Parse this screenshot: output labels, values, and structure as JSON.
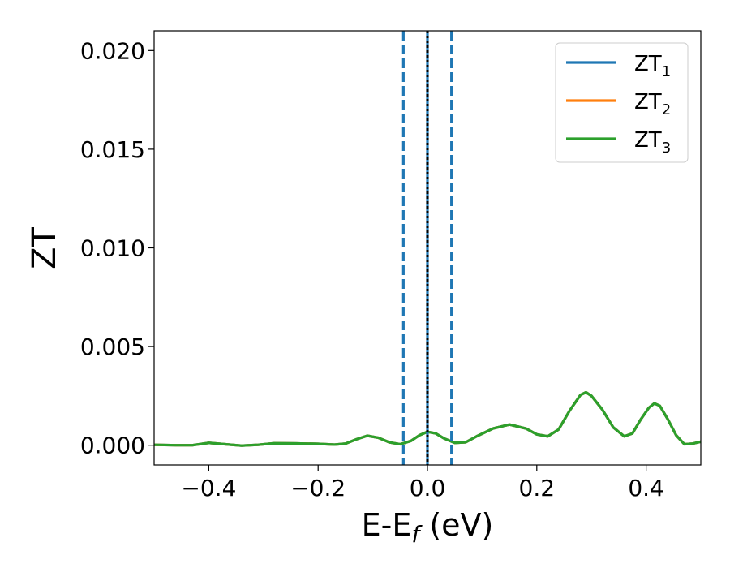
{
  "chart_data": {
    "type": "line",
    "title": "",
    "xlabel": "E-E",
    "xlabel_sub": "f",
    "xlabel_unit": " (eV)",
    "ylabel": "ZT",
    "xlim": [
      -0.5,
      0.5
    ],
    "ylim": [
      -0.001,
      0.021
    ],
    "xticks": [
      -0.4,
      -0.2,
      0.0,
      0.2,
      0.4
    ],
    "xtick_labels": [
      "−0.4",
      "−0.2",
      "0.0",
      "0.2",
      "0.4"
    ],
    "yticks": [
      0.0,
      0.005,
      0.01,
      0.015,
      0.02
    ],
    "ytick_labels": [
      "0.000",
      "0.005",
      "0.010",
      "0.015",
      "0.020"
    ],
    "grid": false,
    "legend_position": "top-right",
    "vlines": [
      {
        "x": -0.044,
        "style": "dashed",
        "color": "#1f77b4"
      },
      {
        "x": 0.0,
        "style": "solid",
        "color": "#1f77b4"
      },
      {
        "x": 0.0,
        "style": "dotted",
        "color": "#000000"
      },
      {
        "x": 0.044,
        "style": "dashed",
        "color": "#1f77b4"
      }
    ],
    "series": [
      {
        "name": "ZT",
        "sub": "1",
        "color": "#1f77b4",
        "points": [
          [
            -0.5,
            2e-05
          ],
          [
            -0.46,
            0.0
          ],
          [
            -0.43,
            0.0
          ],
          [
            -0.4,
            0.00012
          ],
          [
            -0.37,
            5e-05
          ],
          [
            -0.34,
            -2e-05
          ],
          [
            -0.31,
            2e-05
          ],
          [
            -0.28,
            0.0001
          ],
          [
            -0.24,
            9e-05
          ],
          [
            -0.2,
            7e-05
          ],
          [
            -0.17,
            3e-05
          ],
          [
            -0.15,
            8e-05
          ],
          [
            -0.13,
            0.0003
          ],
          [
            -0.11,
            0.00048
          ],
          [
            -0.09,
            0.00038
          ],
          [
            -0.07,
            0.00015
          ],
          [
            -0.05,
            5e-05
          ],
          [
            -0.03,
            0.00022
          ],
          [
            -0.015,
            0.0005
          ],
          [
            0.0,
            0.00068
          ],
          [
            0.015,
            0.0006
          ],
          [
            0.03,
            0.00035
          ],
          [
            0.05,
            0.00012
          ],
          [
            0.07,
            0.00015
          ],
          [
            0.09,
            0.00045
          ],
          [
            0.12,
            0.00085
          ],
          [
            0.15,
            0.00105
          ],
          [
            0.18,
            0.00085
          ],
          [
            0.2,
            0.00055
          ],
          [
            0.22,
            0.00045
          ],
          [
            0.24,
            0.0008
          ],
          [
            0.26,
            0.00175
          ],
          [
            0.28,
            0.00255
          ],
          [
            0.29,
            0.00268
          ],
          [
            0.3,
            0.0025
          ],
          [
            0.32,
            0.0018
          ],
          [
            0.34,
            0.0009
          ],
          [
            0.36,
            0.00045
          ],
          [
            0.375,
            0.0006
          ],
          [
            0.39,
            0.0013
          ],
          [
            0.405,
            0.0019
          ],
          [
            0.415,
            0.00212
          ],
          [
            0.425,
            0.002
          ],
          [
            0.44,
            0.0013
          ],
          [
            0.455,
            0.0005
          ],
          [
            0.47,
            5e-05
          ],
          [
            0.485,
            8e-05
          ],
          [
            0.5,
            0.00018
          ]
        ]
      },
      {
        "name": "ZT",
        "sub": "2",
        "color": "#ff7f0e",
        "points": [
          [
            -0.5,
            2e-05
          ],
          [
            -0.46,
            0.0
          ],
          [
            -0.43,
            0.0
          ],
          [
            -0.4,
            0.00012
          ],
          [
            -0.37,
            5e-05
          ],
          [
            -0.34,
            -2e-05
          ],
          [
            -0.31,
            2e-05
          ],
          [
            -0.28,
            0.0001
          ],
          [
            -0.24,
            9e-05
          ],
          [
            -0.2,
            7e-05
          ],
          [
            -0.17,
            3e-05
          ],
          [
            -0.15,
            8e-05
          ],
          [
            -0.13,
            0.0003
          ],
          [
            -0.11,
            0.00048
          ],
          [
            -0.09,
            0.00038
          ],
          [
            -0.07,
            0.00015
          ],
          [
            -0.05,
            5e-05
          ],
          [
            -0.03,
            0.00022
          ],
          [
            -0.015,
            0.0005
          ],
          [
            0.0,
            0.00068
          ],
          [
            0.015,
            0.0006
          ],
          [
            0.03,
            0.00035
          ],
          [
            0.05,
            0.00012
          ],
          [
            0.07,
            0.00015
          ],
          [
            0.09,
            0.00045
          ],
          [
            0.12,
            0.00085
          ],
          [
            0.15,
            0.00105
          ],
          [
            0.18,
            0.00085
          ],
          [
            0.2,
            0.00055
          ],
          [
            0.22,
            0.00045
          ],
          [
            0.24,
            0.0008
          ],
          [
            0.26,
            0.00175
          ],
          [
            0.28,
            0.00255
          ],
          [
            0.29,
            0.00268
          ],
          [
            0.3,
            0.0025
          ],
          [
            0.32,
            0.0018
          ],
          [
            0.34,
            0.0009
          ],
          [
            0.36,
            0.00045
          ],
          [
            0.375,
            0.0006
          ],
          [
            0.39,
            0.0013
          ],
          [
            0.405,
            0.0019
          ],
          [
            0.415,
            0.00212
          ],
          [
            0.425,
            0.002
          ],
          [
            0.44,
            0.0013
          ],
          [
            0.455,
            0.0005
          ],
          [
            0.47,
            5e-05
          ],
          [
            0.485,
            8e-05
          ],
          [
            0.5,
            0.00018
          ]
        ]
      },
      {
        "name": "ZT",
        "sub": "3",
        "color": "#2ca02c",
        "points": [
          [
            -0.5,
            2e-05
          ],
          [
            -0.46,
            0.0
          ],
          [
            -0.43,
            0.0
          ],
          [
            -0.4,
            0.00012
          ],
          [
            -0.37,
            5e-05
          ],
          [
            -0.34,
            -2e-05
          ],
          [
            -0.31,
            2e-05
          ],
          [
            -0.28,
            0.0001
          ],
          [
            -0.24,
            9e-05
          ],
          [
            -0.2,
            7e-05
          ],
          [
            -0.17,
            3e-05
          ],
          [
            -0.15,
            8e-05
          ],
          [
            -0.13,
            0.0003
          ],
          [
            -0.11,
            0.00048
          ],
          [
            -0.09,
            0.00038
          ],
          [
            -0.07,
            0.00015
          ],
          [
            -0.05,
            5e-05
          ],
          [
            -0.03,
            0.00022
          ],
          [
            -0.015,
            0.0005
          ],
          [
            0.0,
            0.00068
          ],
          [
            0.015,
            0.0006
          ],
          [
            0.03,
            0.00035
          ],
          [
            0.05,
            0.00012
          ],
          [
            0.07,
            0.00015
          ],
          [
            0.09,
            0.00045
          ],
          [
            0.12,
            0.00085
          ],
          [
            0.15,
            0.00105
          ],
          [
            0.18,
            0.00085
          ],
          [
            0.2,
            0.00055
          ],
          [
            0.22,
            0.00045
          ],
          [
            0.24,
            0.0008
          ],
          [
            0.26,
            0.00175
          ],
          [
            0.28,
            0.00255
          ],
          [
            0.29,
            0.00268
          ],
          [
            0.3,
            0.0025
          ],
          [
            0.32,
            0.0018
          ],
          [
            0.34,
            0.0009
          ],
          [
            0.36,
            0.00045
          ],
          [
            0.375,
            0.0006
          ],
          [
            0.39,
            0.0013
          ],
          [
            0.405,
            0.0019
          ],
          [
            0.415,
            0.00212
          ],
          [
            0.425,
            0.002
          ],
          [
            0.44,
            0.0013
          ],
          [
            0.455,
            0.0005
          ],
          [
            0.47,
            5e-05
          ],
          [
            0.485,
            8e-05
          ],
          [
            0.5,
            0.00018
          ]
        ]
      }
    ]
  }
}
